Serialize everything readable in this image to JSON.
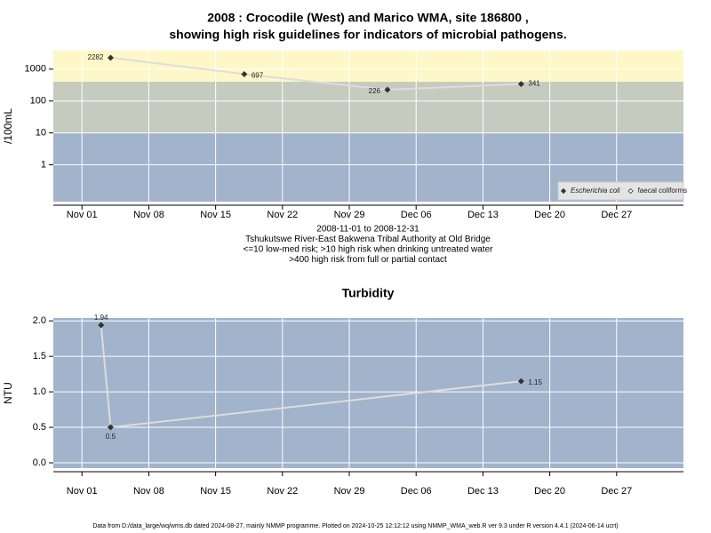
{
  "chart_data": [
    {
      "type": "line",
      "title": [
        "2008 : Crocodile (West) and Marico WMA, site 186800 ,",
        "showing high risk guidelines for indicators of microbial pathogens."
      ],
      "notes": [
        "2008-11-01 to 2008-12-31",
        "Tshukutswe River-East Bakwena Tribal Authority at Old Bridge",
        "<=10 low-med risk; >10 high risk when drinking untreated water",
        ">400 high risk from full or partial contact"
      ],
      "ylabel": "/100mL",
      "x": [
        "2008-11-04",
        "2008-11-18",
        "2008-12-03",
        "2008-12-17"
      ],
      "series": [
        {
          "name": "Escherichia coli",
          "color": "#333333",
          "values": [
            2282,
            697,
            226,
            341
          ]
        },
        {
          "name": "faecal coliforms",
          "color": "#333333",
          "values": [
            null,
            null,
            null,
            null
          ]
        }
      ],
      "log_y": true,
      "ylim": [
        0.07,
        3800
      ],
      "yticks": [
        1,
        10,
        100,
        1000
      ],
      "xlim": [
        "2008-10-29",
        "2009-01-03"
      ],
      "xticks": [
        {
          "value": "2008-11-01",
          "label": "Nov 01"
        },
        {
          "value": "2008-11-08",
          "label": "Nov 08"
        },
        {
          "value": "2008-11-15",
          "label": "Nov 15"
        },
        {
          "value": "2008-11-22",
          "label": "Nov 22"
        },
        {
          "value": "2008-11-29",
          "label": "Nov 29"
        },
        {
          "value": "2008-12-06",
          "label": "Dec 06"
        },
        {
          "value": "2008-12-13",
          "label": "Dec 13"
        },
        {
          "value": "2008-12-20",
          "label": "Dec 20"
        },
        {
          "value": "2008-12-27",
          "label": "Dec 27"
        }
      ],
      "background": "#a2b3cc",
      "bands": [
        {
          "from": 10,
          "to": 400,
          "color": "#c5ccbf"
        },
        {
          "from": 400,
          "color": "#fef7c7"
        }
      ],
      "line_color": "#dddddd",
      "grid": true,
      "legend": "bottom-right"
    },
    {
      "type": "line",
      "title": [
        "Turbidity"
      ],
      "ylabel": "NTU",
      "x": [
        "2008-11-03",
        "2008-11-04",
        "2008-12-17"
      ],
      "series": [
        {
          "name": "Turbidity",
          "color": "#333333",
          "values": [
            1.94,
            0.5,
            1.15
          ]
        }
      ],
      "log_y": false,
      "ylim": [
        -0.075,
        2.04
      ],
      "yticks": [
        {
          "value": 0,
          "label": "0.0"
        },
        0.5,
        {
          "value": 1,
          "label": "1.0"
        },
        1.5,
        {
          "value": 2,
          "label": "2.0"
        }
      ],
      "xlim": [
        "2008-10-29",
        "2009-01-03"
      ],
      "xticks": [
        {
          "value": "2008-11-01",
          "label": "Nov 01"
        },
        {
          "value": "2008-11-08",
          "label": "Nov 08"
        },
        {
          "value": "2008-11-15",
          "label": "Nov 15"
        },
        {
          "value": "2008-11-22",
          "label": "Nov 22"
        },
        {
          "value": "2008-11-29",
          "label": "Nov 29"
        },
        {
          "value": "2008-12-06",
          "label": "Dec 06"
        },
        {
          "value": "2008-12-13",
          "label": "Dec 13"
        },
        {
          "value": "2008-12-20",
          "label": "Dec 20"
        },
        {
          "value": "2008-12-27",
          "label": "Dec 27"
        }
      ],
      "background": "#a2b3cc",
      "line_color": "#dddddd",
      "grid": true
    }
  ],
  "footer": "Data from D:/data_large/wq/wms.db dated 2024-08-27, mainly NMMP programme. Plotted on 2024-10-25 12:12:12 using NMMP_WMA_web.R ver 9.3 under R version 4.4.1 (2024-06-14 ucrt)"
}
